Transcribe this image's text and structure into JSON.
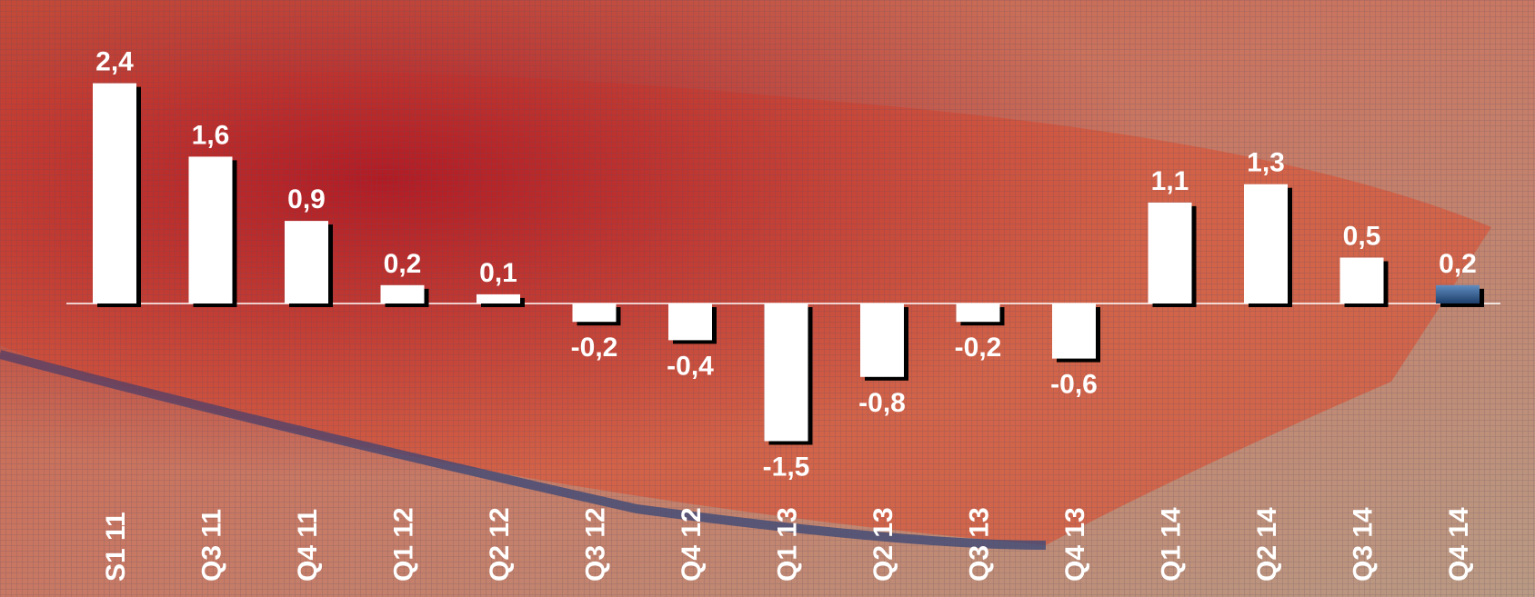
{
  "chart_data": {
    "type": "bar",
    "categories": [
      "S1 11",
      "Q3 11",
      "Q4 11",
      "Q1 12",
      "Q2 12",
      "Q3 12",
      "Q4 12",
      "Q1 13",
      "Q2 13",
      "Q3 13",
      "Q4 13",
      "Q1 14",
      "Q2 14",
      "Q3 14",
      "Q4 14"
    ],
    "values": [
      2.4,
      1.6,
      0.9,
      0.2,
      0.1,
      -0.2,
      -0.4,
      -1.5,
      -0.8,
      -0.2,
      -0.6,
      1.1,
      1.3,
      0.5,
      0.2
    ],
    "value_labels": [
      "2,4",
      "1,6",
      "0,9",
      "0,2",
      "0,1",
      "-0,2",
      "-0,4",
      "-1,5",
      "-0,8",
      "-0,2",
      "-0,6",
      "1,1",
      "1,3",
      "0,5",
      "0,2"
    ],
    "colors": [
      "#ffffff",
      "#ffffff",
      "#ffffff",
      "#ffffff",
      "#ffffff",
      "#ffffff",
      "#ffffff",
      "#ffffff",
      "#ffffff",
      "#ffffff",
      "#ffffff",
      "#ffffff",
      "#ffffff",
      "#ffffff",
      "#2f5f93"
    ]
  }
}
